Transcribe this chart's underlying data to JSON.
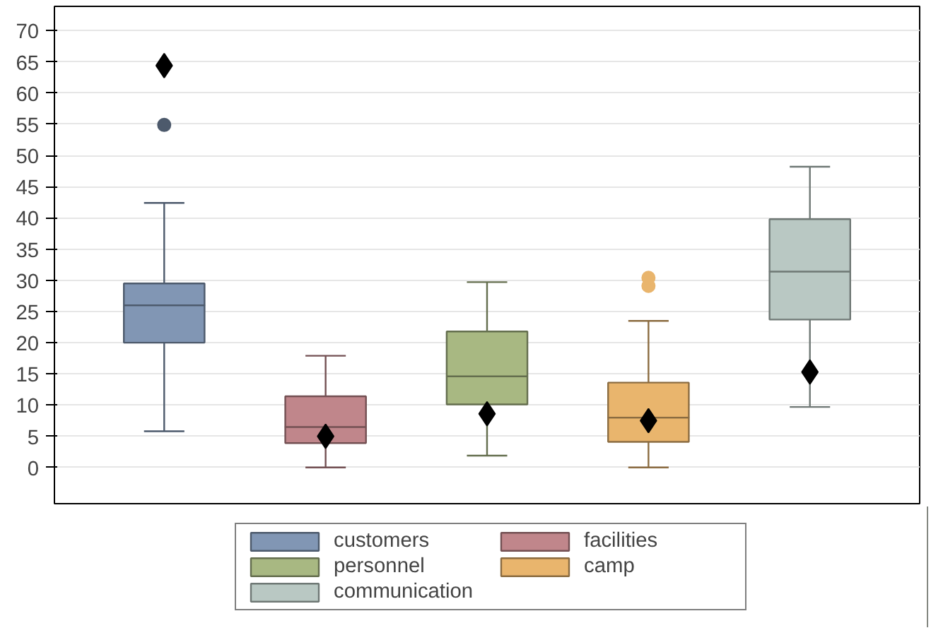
{
  "chart_data": {
    "type": "box",
    "categories": [
      null,
      null,
      null,
      null,
      null
    ],
    "series": [
      {
        "name": "customers",
        "color": "#8196b4",
        "boxes": [
          {
            "low": 5.8,
            "q1": 20,
            "median": 26,
            "q3": 29.5,
            "high": 42.4,
            "outliers": [
              54.9
            ]
          },
          null,
          null,
          null,
          null
        ]
      },
      {
        "name": "facilities",
        "color": "#c0868b",
        "boxes": [
          null,
          {
            "low": 0,
            "q1": 3.9,
            "median": 6.5,
            "q3": 11.4,
            "high": 17.9
          },
          null,
          null,
          null
        ]
      },
      {
        "name": "personnel",
        "color": "#a8b882",
        "boxes": [
          null,
          null,
          {
            "low": 1.9,
            "q1": 10.1,
            "median": 14.6,
            "q3": 21.8,
            "high": 29.7
          },
          null,
          null
        ]
      },
      {
        "name": "camp",
        "color": "#e9b56d",
        "boxes": [
          null,
          null,
          null,
          {
            "low": 0,
            "q1": 4.1,
            "median": 8,
            "q3": 13.6,
            "high": 23.5,
            "outliers": [
              29.1,
              30.4
            ]
          },
          null
        ]
      },
      {
        "name": "communication",
        "color": "#b9c8c3",
        "boxes": [
          null,
          null,
          null,
          null,
          {
            "low": 9.7,
            "q1": 23.7,
            "median": 31.4,
            "q3": 39.8,
            "high": 48.2
          }
        ]
      },
      {
        "type": "scatter",
        "color": "#000000",
        "marker": "diamond",
        "values": [
          64.4,
          5,
          8.6,
          7.5,
          15.3
        ]
      }
    ],
    "ylim": [
      -5.8,
      73.9
    ],
    "yticks": [
      0,
      5,
      10,
      15,
      20,
      25,
      30,
      35,
      40,
      45,
      50,
      55,
      60,
      65,
      70
    ],
    "grid": "y",
    "legend": "bottom",
    "tick_labels": "y"
  }
}
